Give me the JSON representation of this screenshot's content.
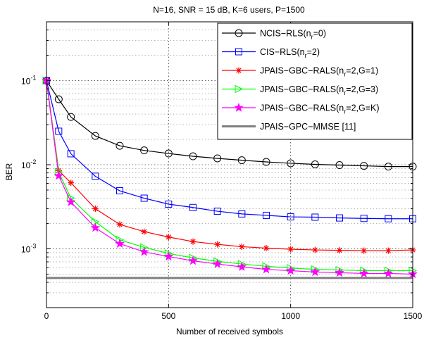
{
  "chart_data": {
    "type": "line",
    "title": "N=16, SNR = 15 dB, K=6 users, P=1500",
    "xlabel": "Number of received symbols",
    "ylabel": "BER",
    "xlim": [
      0,
      1500
    ],
    "ylim": [
      0.0002,
      0.5
    ],
    "yscale": "log",
    "grid": true,
    "legend_position": "top-right",
    "x_ticks": [
      0,
      500,
      1000,
      1500
    ],
    "y_ticks": [
      0.001,
      0.01,
      0.1
    ],
    "y_tick_labels": [
      {
        "base": "10",
        "exp": "-3"
      },
      {
        "base": "10",
        "exp": "-2"
      },
      {
        "base": "10",
        "exp": "-1"
      }
    ],
    "x": [
      0,
      50,
      100,
      200,
      300,
      400,
      500,
      600,
      700,
      800,
      900,
      1000,
      1100,
      1200,
      1300,
      1400,
      1500
    ],
    "series": [
      {
        "name": "NCIS−RLS(n",
        "sub": "r",
        "suffix": "=0)",
        "color": "#000000",
        "marker": "circle",
        "values": [
          0.1,
          0.06,
          0.037,
          0.022,
          0.0168,
          0.0148,
          0.0136,
          0.0126,
          0.0119,
          0.0113,
          0.0108,
          0.0104,
          0.0101,
          0.0099,
          0.0097,
          0.0095,
          0.0095
        ]
      },
      {
        "name": "CIS−RLS(n",
        "sub": "r",
        "suffix": "=2)",
        "color": "#0000ff",
        "marker": "square",
        "values": [
          0.1,
          0.025,
          0.0135,
          0.0073,
          0.0049,
          0.004,
          0.0034,
          0.0031,
          0.0028,
          0.0026,
          0.0025,
          0.0024,
          0.00238,
          0.00233,
          0.0023,
          0.00228,
          0.00228
        ]
      },
      {
        "name": "JPAIS−GBC−RALS(n",
        "sub": "r",
        "suffix": "=2,G=1)",
        "color": "#ff0000",
        "marker": "asterisk",
        "values": [
          0.1,
          0.0085,
          0.0061,
          0.003,
          0.00195,
          0.0016,
          0.00138,
          0.00122,
          0.00113,
          0.00106,
          0.00102,
          0.00099,
          0.00097,
          0.00096,
          0.00095,
          0.00095,
          0.00097
        ]
      },
      {
        "name": "JPAIS−GBC−RALS(n",
        "sub": "r",
        "suffix": "=2,G=3)",
        "color": "#00ff00",
        "marker": "triangle-right",
        "values": [
          0.1,
          0.0082,
          0.004,
          0.0021,
          0.00128,
          0.00104,
          0.00088,
          0.00078,
          0.00071,
          0.00066,
          0.00062,
          0.00059,
          0.00057,
          0.00056,
          0.00055,
          0.00055,
          0.00055
        ]
      },
      {
        "name": "JPAIS−GBC−RALS(n",
        "sub": "r",
        "suffix": "=2,G=K)",
        "color": "#ff00ff",
        "marker": "star",
        "values": [
          0.1,
          0.0074,
          0.0036,
          0.00178,
          0.00115,
          0.00092,
          0.00081,
          0.00072,
          0.00066,
          0.00061,
          0.00057,
          0.00055,
          0.00053,
          0.00052,
          0.00051,
          0.00051,
          0.0005
        ]
      },
      {
        "name": "JPAIS−GPC−MMSE [11]",
        "sub": "",
        "suffix": "",
        "color": "#808080",
        "marker": "none",
        "values": [
          0.00045,
          0.00045,
          0.00045,
          0.00045,
          0.00045,
          0.00045,
          0.00045,
          0.00045,
          0.00045,
          0.00045,
          0.00045,
          0.00045,
          0.00045,
          0.00045,
          0.00045,
          0.00045,
          0.00045
        ]
      }
    ]
  }
}
